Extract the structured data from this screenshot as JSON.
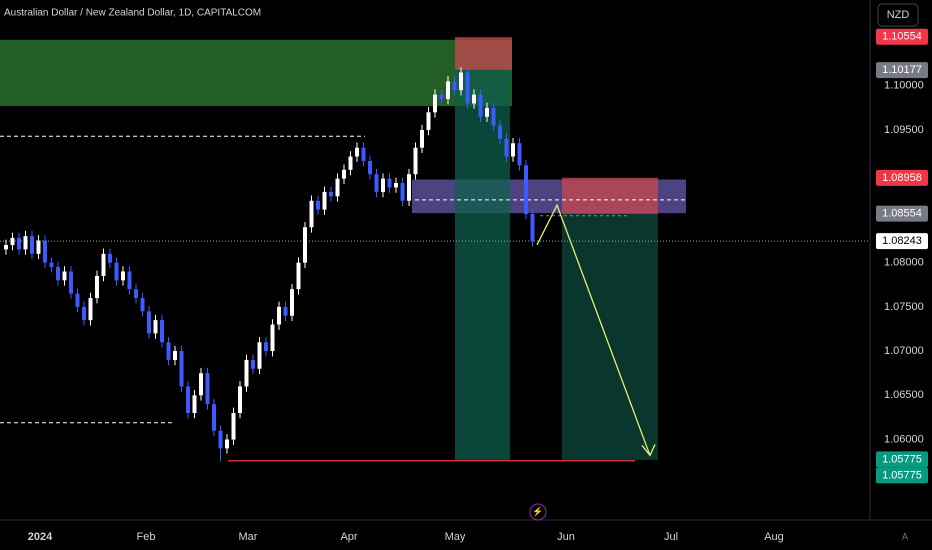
{
  "chart_data": {
    "type": "candlestick",
    "title": "Australian Dollar / New Zealand Dollar, 1D, CAPITALCOM",
    "currency": "NZD",
    "corner_label": "A",
    "x_labels": [
      "2024",
      "Feb",
      "Mar",
      "Apr",
      "May",
      "Jun",
      "Jul",
      "Aug"
    ],
    "up_color": "#ffffff",
    "down_color": "#3d5afe",
    "ylim": [
      1.0509,
      1.1097
    ],
    "yticks": [
      {
        "value": 1.1,
        "label": "1.10000"
      },
      {
        "value": 1.095,
        "label": "1.09500"
      },
      {
        "value": 1.08,
        "label": "1.08000"
      },
      {
        "value": 1.075,
        "label": "1.07500"
      },
      {
        "value": 1.07,
        "label": "1.07000"
      },
      {
        "value": 1.065,
        "label": "1.06500"
      },
      {
        "value": 1.06,
        "label": "1.06000"
      }
    ],
    "candles": [
      [
        1.0815,
        1.0826,
        1.0809,
        1.082
      ],
      [
        1.082,
        1.0834,
        1.0814,
        1.0828
      ],
      [
        1.0828,
        1.0834,
        1.0809,
        1.0815
      ],
      [
        1.0815,
        1.0836,
        1.0809,
        1.083
      ],
      [
        1.083,
        1.0836,
        1.0804,
        1.081
      ],
      [
        1.081,
        1.0831,
        1.0804,
        1.0825
      ],
      [
        1.0825,
        1.0831,
        1.0794,
        1.08
      ],
      [
        1.08,
        1.0806,
        1.0789,
        1.0795
      ],
      [
        1.0795,
        1.0801,
        1.0774,
        1.078
      ],
      [
        1.078,
        1.0796,
        1.0774,
        1.079
      ],
      [
        1.079,
        1.0796,
        1.0759,
        1.0765
      ],
      [
        1.0765,
        1.0771,
        1.0744,
        1.075
      ],
      [
        1.075,
        1.0756,
        1.0729,
        1.0735
      ],
      [
        1.0735,
        1.0766,
        1.0729,
        1.076
      ],
      [
        1.076,
        1.0791,
        1.0754,
        1.0785
      ],
      [
        1.0785,
        1.0816,
        1.0779,
        1.081
      ],
      [
        1.081,
        1.0816,
        1.0794,
        1.08
      ],
      [
        1.08,
        1.0806,
        1.0774,
        1.078
      ],
      [
        1.078,
        1.0796,
        1.0774,
        1.079
      ],
      [
        1.079,
        1.0796,
        1.0764,
        1.077
      ],
      [
        1.077,
        1.0776,
        1.0754,
        1.076
      ],
      [
        1.076,
        1.0766,
        1.0739,
        1.0745
      ],
      [
        1.0745,
        1.0751,
        1.0714,
        1.072
      ],
      [
        1.072,
        1.0741,
        1.0714,
        1.0735
      ],
      [
        1.0735,
        1.0741,
        1.0704,
        1.071
      ],
      [
        1.071,
        1.0716,
        1.0684,
        1.069
      ],
      [
        1.069,
        1.0706,
        1.0684,
        1.07
      ],
      [
        1.07,
        1.0706,
        1.0654,
        1.066
      ],
      [
        1.066,
        1.0666,
        1.0624,
        1.063
      ],
      [
        1.063,
        1.0656,
        1.0624,
        1.065
      ],
      [
        1.065,
        1.0681,
        1.0644,
        1.0675
      ],
      [
        1.0675,
        1.0681,
        1.0634,
        1.064
      ],
      [
        1.064,
        1.0646,
        1.0604,
        1.061
      ],
      [
        1.061,
        1.0616,
        1.0575,
        1.059
      ],
      [
        1.059,
        1.0606,
        1.0584,
        1.06
      ],
      [
        1.06,
        1.0636,
        1.0594,
        1.063
      ],
      [
        1.063,
        1.0666,
        1.0624,
        1.066
      ],
      [
        1.066,
        1.0696,
        1.0654,
        1.069
      ],
      [
        1.069,
        1.0696,
        1.0674,
        1.068
      ],
      [
        1.068,
        1.0716,
        1.0674,
        1.071
      ],
      [
        1.071,
        1.0716,
        1.0694,
        1.07
      ],
      [
        1.07,
        1.0736,
        1.0694,
        1.073
      ],
      [
        1.073,
        1.0756,
        1.0724,
        1.075
      ],
      [
        1.075,
        1.0756,
        1.0734,
        1.074
      ],
      [
        1.074,
        1.0776,
        1.0734,
        1.077
      ],
      [
        1.077,
        1.0806,
        1.0764,
        1.08
      ],
      [
        1.08,
        1.0846,
        1.0794,
        1.084
      ],
      [
        1.084,
        1.0876,
        1.0834,
        1.087
      ],
      [
        1.087,
        1.0876,
        1.0854,
        1.086
      ],
      [
        1.086,
        1.0886,
        1.0854,
        1.088
      ],
      [
        1.088,
        1.0886,
        1.0869,
        1.0875
      ],
      [
        1.0875,
        1.0901,
        1.0869,
        1.0895
      ],
      [
        1.0895,
        1.0911,
        1.0889,
        1.0905
      ],
      [
        1.0905,
        1.0926,
        1.0899,
        1.092
      ],
      [
        1.092,
        1.0936,
        1.0914,
        1.093
      ],
      [
        1.093,
        1.0936,
        1.0909,
        1.0915
      ],
      [
        1.0915,
        1.0921,
        1.0894,
        1.09
      ],
      [
        1.09,
        1.0906,
        1.0874,
        1.088
      ],
      [
        1.088,
        1.0901,
        1.0874,
        1.0895
      ],
      [
        1.0895,
        1.0901,
        1.0879,
        1.0885
      ],
      [
        1.0885,
        1.0896,
        1.0879,
        1.089
      ],
      [
        1.089,
        1.0896,
        1.0864,
        1.087
      ],
      [
        1.087,
        1.0906,
        1.0864,
        1.09
      ],
      [
        1.09,
        1.0936,
        1.0894,
        1.093
      ],
      [
        1.093,
        1.0956,
        1.0924,
        1.095
      ],
      [
        1.095,
        1.0976,
        1.0944,
        1.097
      ],
      [
        1.097,
        1.0996,
        1.0964,
        1.099
      ],
      [
        1.099,
        1.0996,
        1.0979,
        1.0985
      ],
      [
        1.0985,
        1.1011,
        1.0979,
        1.1005
      ],
      [
        1.1005,
        1.1011,
        1.0989,
        1.0995
      ],
      [
        1.0995,
        1.1021,
        1.0989,
        1.1015
      ],
      [
        1.1015,
        1.1021,
        1.0974,
        1.098
      ],
      [
        1.098,
        1.0996,
        1.0974,
        1.099
      ],
      [
        1.099,
        1.0996,
        1.0959,
        1.0965
      ],
      [
        1.0965,
        1.0981,
        1.0959,
        1.0975
      ],
      [
        1.0975,
        1.0981,
        1.0949,
        1.0955
      ],
      [
        1.0955,
        1.0961,
        1.0934,
        1.094
      ],
      [
        1.094,
        1.0946,
        1.0914,
        1.092
      ],
      [
        1.092,
        1.0941,
        1.0914,
        1.0935
      ],
      [
        1.0935,
        1.0941,
        1.0904,
        1.091
      ],
      [
        1.091,
        1.0916,
        1.0849,
        1.0855
      ],
      [
        1.0855,
        1.0861,
        1.0818,
        1.0824
      ]
    ],
    "zones": [
      {
        "high": 1.1052,
        "low": 1.0977,
        "color": "#2e7d32"
      },
      {
        "high": 1.0894,
        "low": 1.0856,
        "color": "#7e6fd6"
      },
      {
        "high": 1.1055,
        "low": 1.1018,
        "color": "#c2474f"
      },
      {
        "high": 1.1018,
        "low": 1.0577,
        "color": "#0f5f4c"
      },
      {
        "high": 1.0896,
        "low": 1.0855,
        "color": "#c2474f"
      },
      {
        "high": 1.0855,
        "low": 1.0577,
        "color": "#0d4a3c"
      }
    ],
    "levels": [
      {
        "value": 1.0943,
        "color": "#ffffff"
      },
      {
        "value": 1.0619,
        "color": "#ffffff"
      },
      {
        "value": 1.0871,
        "color": "#ffffff"
      },
      {
        "value": 1.0853,
        "color": "#8a8a8a"
      },
      {
        "value": 1.08243,
        "color": "#9e9e9e"
      },
      {
        "value": 1.0576,
        "color": "#d32f2f"
      }
    ],
    "arrow": [
      1.082,
      1.0865,
      1.0582
    ],
    "price_badges": [
      {
        "value": 1.10554,
        "color": "#f23645"
      },
      {
        "value": 1.10177,
        "color": "#787b86"
      },
      {
        "value": 1.08958,
        "color": "#f23645"
      },
      {
        "value": 1.08554,
        "color": "#787b86"
      },
      {
        "value": 1.08243,
        "color": "#ffffff"
      },
      {
        "value": 1.05775,
        "color": "#089981"
      },
      {
        "value": 1.05775,
        "color": "#089981"
      }
    ]
  }
}
